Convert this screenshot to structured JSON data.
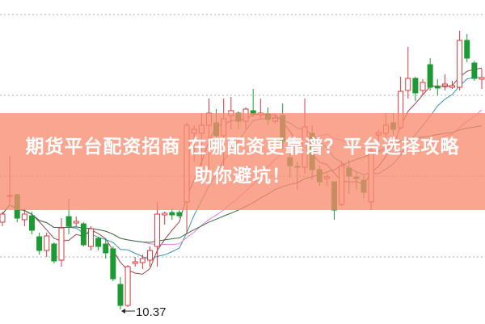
{
  "banner": {
    "line1": "期货平台配资招商 在哪配资更靠谱？平台选择攻略",
    "line2": "助你避坑！"
  },
  "chart_data": {
    "type": "candlestick",
    "title": "",
    "xlabel": "",
    "ylabel": "",
    "ylim": [
      10.19,
      14.2
    ],
    "grid": true,
    "gridlines": [
      14.02,
      13.02,
      12.02,
      11.02
    ],
    "low_annotation": {
      "label": "10.37",
      "candle_index": 16,
      "value": 10.37
    },
    "colors": {
      "up": "#d6393c",
      "down": "#1e9a34",
      "ma5": "#a3404f",
      "ma10": "#3c93b3",
      "ma20": "#e27fe0",
      "ma30": "#3b6e3f",
      "grid": "#b0b0b0"
    },
    "moving_averages": [
      5,
      10,
      20,
      30
    ],
    "candles_ohlc": [
      [
        11.45,
        11.58,
        11.4,
        11.55
      ],
      [
        11.77,
        12.27,
        11.68,
        11.78
      ],
      [
        11.79,
        11.8,
        11.45,
        11.5
      ],
      [
        11.48,
        11.62,
        11.4,
        11.55
      ],
      [
        11.53,
        11.58,
        11.3,
        11.35
      ],
      [
        11.27,
        11.32,
        11.05,
        11.1
      ],
      [
        11.1,
        11.32,
        11.02,
        11.28
      ],
      [
        11.18,
        11.2,
        10.94,
        10.97
      ],
      [
        10.98,
        11.5,
        10.9,
        11.38
      ],
      [
        11.52,
        11.74,
        11.3,
        11.4
      ],
      [
        11.44,
        11.52,
        11.4,
        11.46
      ],
      [
        11.43,
        11.45,
        11.15,
        11.17
      ],
      [
        11.15,
        11.4,
        11.1,
        11.37
      ],
      [
        11.25,
        11.27,
        11.1,
        11.15
      ],
      [
        11.18,
        11.25,
        11.0,
        11.07
      ],
      [
        11.12,
        11.15,
        10.72,
        10.75
      ],
      [
        10.68,
        10.77,
        10.37,
        10.42
      ],
      [
        10.42,
        10.92,
        10.4,
        10.9
      ],
      [
        10.94,
        11.02,
        10.9,
        10.96
      ],
      [
        10.95,
        11.05,
        10.87,
        11.0
      ],
      [
        10.98,
        11.15,
        10.9,
        11.1
      ],
      [
        11.15,
        11.7,
        10.9,
        11.55
      ],
      [
        11.54,
        11.58,
        11.42,
        11.56
      ],
      [
        11.57,
        11.62,
        11.48,
        11.54
      ],
      [
        11.57,
        11.6,
        11.5,
        11.53
      ],
      [
        11.7,
        12.68,
        11.3,
        12.65
      ],
      [
        12.55,
        12.65,
        12.2,
        12.6
      ],
      [
        12.55,
        12.8,
        12.15,
        12.65
      ],
      [
        12.65,
        12.98,
        12.1,
        12.8
      ],
      [
        12.68,
        12.85,
        12.4,
        12.52
      ],
      [
        12.52,
        12.98,
        12.15,
        12.73
      ],
      [
        12.77,
        13.0,
        12.6,
        12.83
      ],
      [
        12.8,
        12.82,
        12.6,
        12.7
      ],
      [
        12.7,
        12.87,
        12.6,
        12.85
      ],
      [
        12.83,
        13.1,
        12.75,
        12.78
      ],
      [
        12.78,
        12.98,
        12.73,
        12.8
      ],
      [
        12.79,
        12.87,
        12.65,
        12.72
      ],
      [
        12.7,
        12.77,
        12.67,
        12.74
      ],
      [
        12.77,
        12.92,
        12.35,
        12.45
      ],
      [
        12.25,
        12.3,
        12.0,
        12.15
      ],
      [
        12.14,
        12.2,
        11.85,
        12.13
      ],
      [
        12.13,
        12.98,
        12.05,
        12.63
      ],
      [
        12.55,
        12.65,
        11.98,
        12.1
      ],
      [
        12.1,
        12.15,
        11.9,
        11.95
      ],
      [
        11.99,
        12.05,
        11.9,
        12.01
      ],
      [
        11.95,
        11.95,
        11.48,
        11.6
      ],
      [
        11.67,
        12.2,
        11.65,
        12.15
      ],
      [
        12.12,
        12.22,
        11.8,
        12.02
      ],
      [
        12.01,
        12.08,
        11.85,
        11.99
      ],
      [
        11.97,
        12.02,
        11.75,
        11.82
      ],
      [
        11.7,
        12.4,
        11.6,
        12.32
      ],
      [
        12.53,
        12.6,
        12.45,
        12.56
      ],
      [
        12.55,
        12.8,
        12.5,
        12.65
      ],
      [
        12.68,
        12.8,
        12.52,
        12.6
      ],
      [
        12.62,
        13.25,
        12.6,
        13.07
      ],
      [
        13.08,
        13.62,
        12.98,
        13.23
      ],
      [
        13.23,
        13.25,
        12.95,
        13.05
      ],
      [
        13.08,
        13.22,
        13.02,
        13.18
      ],
      [
        13.4,
        13.48,
        13.08,
        13.12
      ],
      [
        13.13,
        13.22,
        13.02,
        13.11
      ],
      [
        13.14,
        13.28,
        13.08,
        13.16
      ],
      [
        13.12,
        13.2,
        13.1,
        13.14
      ],
      [
        13.12,
        13.82,
        13.08,
        13.7
      ],
      [
        13.7,
        13.78,
        13.43,
        13.48
      ],
      [
        13.42,
        13.45,
        13.2,
        13.23
      ],
      [
        13.22,
        13.35,
        13.1,
        13.24
      ]
    ]
  }
}
